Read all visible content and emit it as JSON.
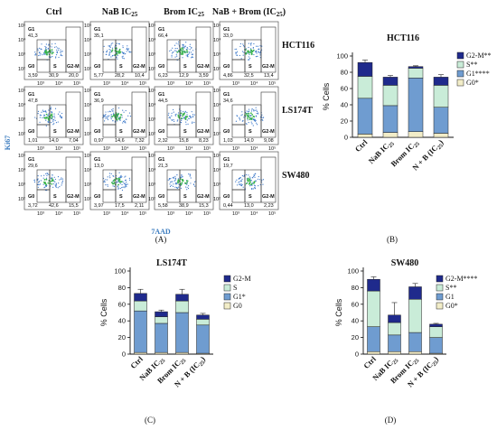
{
  "colors": {
    "g2m": "#1f2a8c",
    "s": "#c9ecd8",
    "g1": "#6f9cd0",
    "g0": "#f2edc8",
    "flow_border": "#555555",
    "flow_cloud_outer": "#3c78c9",
    "flow_cloud_core": "#39b54a",
    "axis_label_color": "#3a7bbf"
  },
  "panelA": {
    "col_headers": [
      "Ctrl",
      "NaB IC25",
      "Brom IC25",
      "NaB + Brom (IC25)"
    ],
    "row_labels": [
      "HCT116",
      "LS174T",
      "SW480"
    ],
    "x_axis_label": "7AAD",
    "y_axis_label": "Ki67",
    "gate_labels": {
      "g1": "G1",
      "g0": "G0",
      "s": "S",
      "g2m": "G2-M"
    },
    "tick_labels": {
      "y": [
        "10⁵",
        "10⁴",
        "10³",
        "10²"
      ],
      "x": [
        "10³",
        "10⁴",
        "10⁵"
      ]
    },
    "cells": [
      [
        {
          "g1": "41,3",
          "g0": "3,59",
          "s": "30,9",
          "g2m": "20,0"
        },
        {
          "g1": "35,1",
          "g0": "5,77",
          "s": "28,2",
          "g2m": "10,4"
        },
        {
          "g1": "66,4",
          "g0": "6,23",
          "s": "12,9",
          "g2m": "3,59"
        },
        {
          "g1": "33,0",
          "g0": "4,86",
          "s": "32,5",
          "g2m": "13,4"
        }
      ],
      [
        {
          "g1": "47,8",
          "g0": "1,01",
          "s": "14,0",
          "g2m": "7,04"
        },
        {
          "g1": "36,9",
          "g0": "0,97",
          "s": "14,6",
          "g2m": "7,32"
        },
        {
          "g1": "44,5",
          "g0": "2,32",
          "s": "15,8",
          "g2m": "8,23"
        },
        {
          "g1": "34,6",
          "g0": "1,03",
          "s": "14,0",
          "g2m": "9,08"
        }
      ],
      [
        {
          "g1": "29,6",
          "g0": "3,72",
          "s": "42,6",
          "g2m": "15,5"
        },
        {
          "g1": "13,0",
          "g0": "3,97",
          "s": "17,5",
          "g2m": "2,11"
        },
        {
          "g1": "21,3",
          "g0": "5,58",
          "s": "38,9",
          "g2m": "15,3"
        },
        {
          "g1": "19,7",
          "g0": "0,44",
          "s": "13,0",
          "g2m": "2,23"
        }
      ]
    ],
    "panel_label": "(A)"
  },
  "chart_data": [
    {
      "id": "B",
      "type": "bar",
      "stacked": true,
      "title": "HCT116",
      "ylabel": "% Cells",
      "ylim": [
        0,
        100
      ],
      "yticks": [
        0,
        20,
        40,
        60,
        80,
        100
      ],
      "categories": [
        "Ctrl",
        "NaB IC25",
        "Brom IC25",
        "N + B (IC25)"
      ],
      "series": [
        {
          "name": "G0",
          "stars": "*",
          "color": "#f2edc8",
          "values": [
            4,
            6,
            7,
            5
          ],
          "errors": [
            1,
            1.5,
            1.5,
            1
          ]
        },
        {
          "name": "G1",
          "stars": "****",
          "color": "#6f9cd0",
          "values": [
            44,
            33,
            66,
            32
          ],
          "errors": [
            2,
            2,
            2,
            2
          ]
        },
        {
          "name": "S",
          "stars": "**",
          "color": "#c9ecd8",
          "values": [
            27,
            25,
            12,
            27
          ],
          "errors": [
            2,
            2,
            2,
            3
          ]
        },
        {
          "name": "G2-M",
          "stars": "**",
          "color": "#1f2a8c",
          "values": [
            17,
            10,
            2,
            10
          ],
          "errors": [
            3,
            2,
            1,
            3
          ]
        }
      ],
      "legend_placement": "right",
      "panel_label": "(B)"
    },
    {
      "id": "C",
      "type": "bar",
      "stacked": true,
      "title": "LS174T",
      "ylabel": "% Cells",
      "ylim": [
        0,
        100
      ],
      "yticks": [
        0,
        20,
        40,
        60,
        80,
        100
      ],
      "categories": [
        "Ctrl",
        "NaB IC25",
        "Brom IC25",
        "N + B (IC25)"
      ],
      "series": [
        {
          "name": "G0",
          "stars": "",
          "color": "#f2edc8",
          "values": [
            2,
            2,
            2,
            1
          ],
          "errors": [
            0.5,
            0.5,
            0.5,
            0.5
          ]
        },
        {
          "name": "G1",
          "stars": "*",
          "color": "#6f9cd0",
          "values": [
            50,
            35,
            48,
            34
          ],
          "errors": [
            6,
            6,
            8,
            6
          ]
        },
        {
          "name": "S",
          "stars": "",
          "color": "#c9ecd8",
          "values": [
            12,
            8,
            14,
            7
          ],
          "errors": [
            3,
            4,
            6,
            3
          ]
        },
        {
          "name": "G2-M",
          "stars": "",
          "color": "#1f2a8c",
          "values": [
            9,
            6,
            8,
            5
          ],
          "errors": [
            5,
            2,
            6,
            2
          ]
        }
      ],
      "legend_placement": "right",
      "panel_label": "(C)"
    },
    {
      "id": "D",
      "type": "bar",
      "stacked": true,
      "title": "SW480",
      "ylabel": "% Cells",
      "ylim": [
        0,
        100
      ],
      "yticks": [
        0,
        20,
        40,
        60,
        80,
        100
      ],
      "categories": [
        "Ctrl",
        "NaB IC25",
        "Brom IC25",
        "N + B (IC25)"
      ],
      "series": [
        {
          "name": "G0",
          "stars": "*",
          "color": "#f2edc8",
          "values": [
            3,
            3,
            3,
            1
          ],
          "errors": [
            1,
            1,
            1,
            0.5
          ]
        },
        {
          "name": "G1",
          "stars": "",
          "color": "#6f9cd0",
          "values": [
            30,
            20,
            23,
            19
          ],
          "errors": [
            8,
            12,
            3,
            2
          ]
        },
        {
          "name": "S",
          "stars": "**",
          "color": "#c9ecd8",
          "values": [
            43,
            15,
            40,
            13
          ],
          "errors": [
            4,
            8,
            3,
            2
          ]
        },
        {
          "name": "G2-M",
          "stars": "****",
          "color": "#1f2a8c",
          "values": [
            14,
            9,
            15,
            3
          ],
          "errors": [
            3,
            15,
            4,
            1
          ]
        }
      ],
      "legend_placement": "right",
      "panel_label": "(D)"
    }
  ]
}
